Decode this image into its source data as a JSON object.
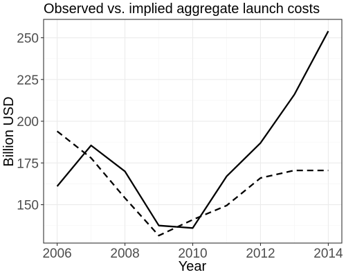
{
  "chart_data": {
    "type": "line",
    "title": "Observed vs. implied aggregate launch costs",
    "xlabel": "Year",
    "ylabel": "Billion USD",
    "x": [
      2006,
      2007,
      2008,
      2009,
      2010,
      2011,
      2012,
      2013,
      2014
    ],
    "xlim": [
      2005.6,
      2014.4
    ],
    "ylim": [
      127,
      261
    ],
    "x_ticks": [
      2006,
      2008,
      2010,
      2012,
      2014
    ],
    "y_ticks": [
      150,
      175,
      200,
      225,
      250
    ],
    "grid": true,
    "legend": "none",
    "series": [
      {
        "line_style": "solid",
        "color": "#000000",
        "values": [
          161,
          185.5,
          170,
          137.5,
          136,
          167,
          187,
          216,
          254
        ]
      },
      {
        "line_style": "dashed",
        "color": "#000000",
        "values": [
          194,
          178,
          154,
          131.5,
          141,
          149.5,
          166,
          170.5,
          170.5
        ]
      }
    ]
  }
}
